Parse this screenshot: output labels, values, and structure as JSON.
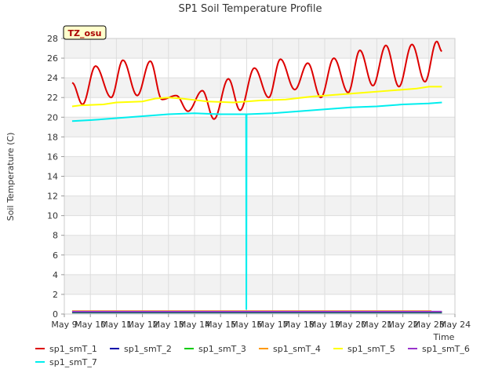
{
  "chart_data": {
    "type": "line",
    "title": "SP1 Soil Temperature Profile",
    "xlabel": "Time",
    "ylabel": "Soil Temperature (C)",
    "ylim": [
      0,
      28
    ],
    "xlim": [
      "May 9",
      "May 24"
    ],
    "x_ticks": [
      "May 9",
      "May 10",
      "May 11",
      "May 12",
      "May 13",
      "May 14",
      "May 15",
      "May 16",
      "May 17",
      "May 18",
      "May 19",
      "May 20",
      "May 21",
      "May 22",
      "May 23",
      "May 24"
    ],
    "y_ticks": [
      0,
      2,
      4,
      6,
      8,
      10,
      12,
      14,
      16,
      18,
      20,
      22,
      24,
      26,
      28
    ],
    "grid": true,
    "band_fill": "#f2f2f2",
    "annotation": "TZ_osu",
    "legend_position": "bottom",
    "series": [
      {
        "name": "sp1_smT_1",
        "color": "#dd0000",
        "x": [
          9.3,
          9.7,
          10.2,
          10.8,
          11.25,
          11.8,
          12.3,
          12.75,
          13.3,
          13.75,
          14.3,
          14.75,
          15.3,
          15.75,
          16.3,
          16.85,
          17.3,
          17.85,
          18.35,
          18.85,
          19.35,
          19.9,
          20.35,
          20.85,
          21.35,
          21.85,
          22.35,
          22.85,
          23.3,
          23.5
        ],
        "y": [
          23.5,
          21.3,
          25.2,
          22.0,
          25.8,
          22.2,
          25.7,
          21.8,
          22.2,
          20.6,
          22.7,
          19.8,
          23.9,
          20.7,
          25.0,
          22.0,
          25.9,
          22.8,
          25.5,
          22.0,
          26.0,
          22.5,
          26.8,
          23.2,
          27.3,
          23.1,
          27.4,
          23.6,
          27.7,
          26.7
        ]
      },
      {
        "name": "sp1_smT_2",
        "color": "#0000aa",
        "x": [
          9.3,
          23.5
        ],
        "y": [
          0.15,
          0.15
        ]
      },
      {
        "name": "sp1_smT_3",
        "color": "#00cc00",
        "x": [
          9.3,
          23.5
        ],
        "y": [
          0.2,
          0.2
        ]
      },
      {
        "name": "sp1_smT_4",
        "color": "#ff9900",
        "x": [
          9.3,
          23.1
        ],
        "y": [
          0.3,
          0.3
        ]
      },
      {
        "name": "sp1_smT_5",
        "color": "#ffff00",
        "x": [
          9.3,
          9.6,
          10.5,
          11.0,
          12.0,
          12.5,
          13.0,
          13.5,
          14.5,
          15.5,
          16.5,
          17.5,
          18.5,
          19.5,
          20.5,
          21.5,
          22.5,
          23.0,
          23.5
        ],
        "y": [
          21.1,
          21.2,
          21.3,
          21.5,
          21.6,
          21.9,
          22.0,
          21.9,
          21.6,
          21.5,
          21.7,
          21.8,
          22.1,
          22.3,
          22.5,
          22.7,
          22.9,
          23.1,
          23.1
        ]
      },
      {
        "name": "sp1_smT_6",
        "color": "#9933cc",
        "x": [
          9.3,
          23.5
        ],
        "y": [
          0.25,
          0.25
        ]
      },
      {
        "name": "sp1_smT_7",
        "color": "#00eeee",
        "x": [
          9.3,
          10.0,
          11.0,
          12.0,
          13.0,
          14.0,
          15.0,
          15.98,
          15.99,
          16.0,
          16.01,
          16.02,
          17.0,
          18.0,
          19.0,
          20.0,
          21.0,
          22.0,
          23.0,
          23.5
        ],
        "y": [
          19.6,
          19.7,
          19.9,
          20.1,
          20.3,
          20.4,
          20.3,
          20.3,
          0.5,
          20.2,
          20.3,
          20.3,
          20.4,
          20.6,
          20.8,
          21.0,
          21.1,
          21.3,
          21.4,
          21.5
        ]
      }
    ]
  }
}
